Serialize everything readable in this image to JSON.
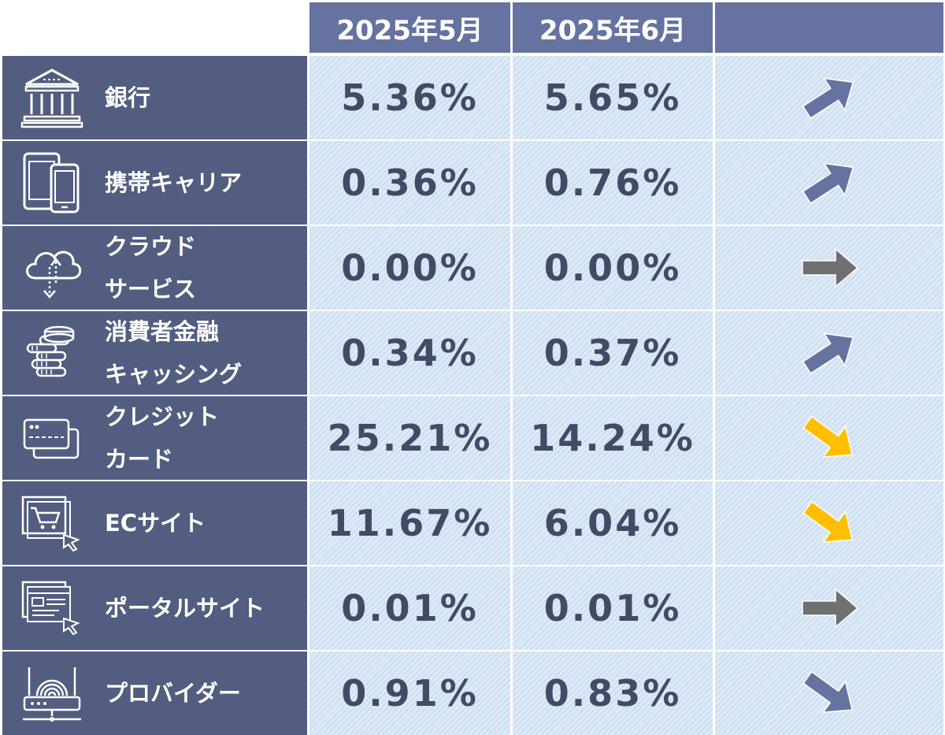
{
  "chart_data": {
    "type": "table",
    "columns": [
      "2025年5月",
      "2025年6月"
    ],
    "rows": [
      {
        "label_lines": [
          "銀行"
        ],
        "icon": "bank-icon",
        "may": "5.36%",
        "jun": "5.65%",
        "trend": "up"
      },
      {
        "label_lines": [
          "携帯キャリア"
        ],
        "icon": "smartphone-icon",
        "may": "0.36%",
        "jun": "0.76%",
        "trend": "up"
      },
      {
        "label_lines": [
          "クラウド",
          "サービス"
        ],
        "icon": "cloud-icon",
        "may": "0.00%",
        "jun": "0.00%",
        "trend": "flat"
      },
      {
        "label_lines": [
          "消費者金融",
          "キャッシング"
        ],
        "icon": "coins-icon",
        "may": "0.34%",
        "jun": "0.37%",
        "trend": "up"
      },
      {
        "label_lines": [
          "クレジット",
          "カード"
        ],
        "icon": "credit-card-icon",
        "may": "25.21%",
        "jun": "14.24%",
        "trend": "down-big"
      },
      {
        "label_lines": [
          "ECサイト"
        ],
        "icon": "shopping-cart-icon",
        "may": "11.67%",
        "jun": "6.04%",
        "trend": "down-big"
      },
      {
        "label_lines": [
          "ポータルサイト"
        ],
        "icon": "web-portal-icon",
        "may": "0.01%",
        "jun": "0.01%",
        "trend": "flat"
      },
      {
        "label_lines": [
          "プロバイダー"
        ],
        "icon": "router-icon",
        "may": "0.91%",
        "jun": "0.83%",
        "trend": "down"
      }
    ],
    "trend_colors": {
      "up": "#6672a0",
      "down": "#6672a0",
      "flat": "#707070",
      "down-big": "#ffbf00"
    }
  }
}
